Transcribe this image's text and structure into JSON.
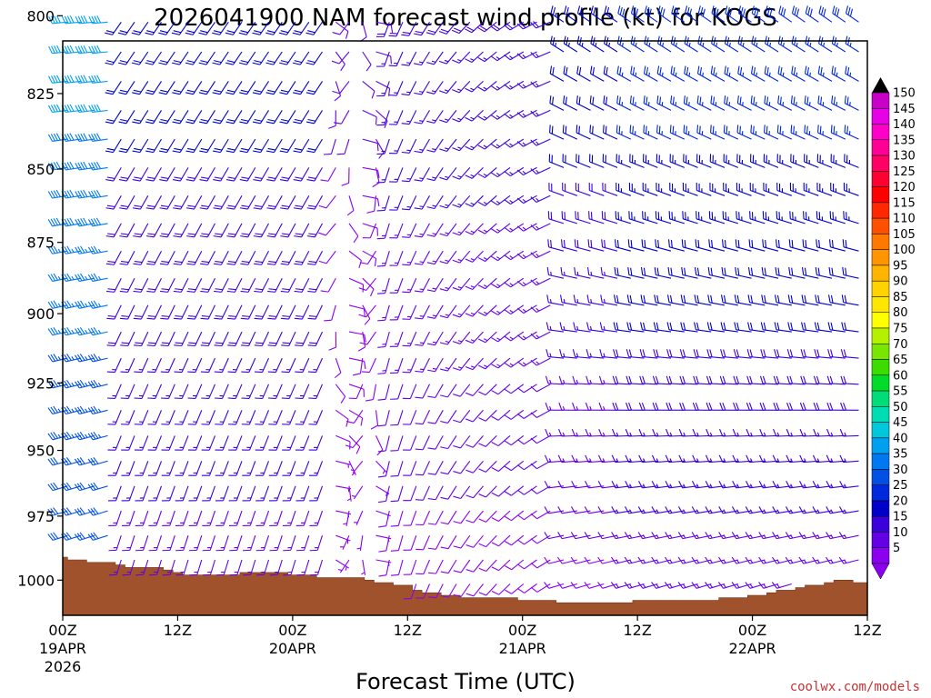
{
  "chart_data": {
    "type": "wind-barb-profile",
    "title": "2026041900 NAM forecast wind profile (kt) for KOGS",
    "xlabel": "Forecast Time (UTC)",
    "ylabel": "",
    "credit": "coolwx.com/models",
    "units": "kt",
    "x_hours_range": [
      0,
      84
    ],
    "y_pressure_range": [
      808,
      1014
    ],
    "x_ticks": [
      {
        "hour": 0,
        "label": "00Z",
        "date": "19APR",
        "year": "2026"
      },
      {
        "hour": 12,
        "label": "12Z",
        "date": "",
        "year": ""
      },
      {
        "hour": 24,
        "label": "00Z",
        "date": "20APR",
        "year": ""
      },
      {
        "hour": 36,
        "label": "12Z",
        "date": "",
        "year": ""
      },
      {
        "hour": 48,
        "label": "00Z",
        "date": "21APR",
        "year": ""
      },
      {
        "hour": 60,
        "label": "12Z",
        "date": "",
        "year": ""
      },
      {
        "hour": 72,
        "label": "00Z",
        "date": "22APR",
        "year": ""
      },
      {
        "hour": 84,
        "label": "12Z",
        "date": "",
        "year": ""
      }
    ],
    "y_ticks": [
      800,
      825,
      850,
      875,
      900,
      925,
      950,
      975,
      1000
    ],
    "colorbar": {
      "labels": [
        "150",
        "145",
        "140",
        "135",
        "130",
        "125",
        "120",
        "115",
        "110",
        "105",
        "100",
        "95",
        "90",
        "85",
        "80",
        "75",
        "70",
        "65",
        "60",
        "55",
        "50",
        "45",
        "40",
        "35",
        "30",
        "25",
        "20",
        "15",
        "10",
        "5"
      ],
      "colors": [
        "#c800c8",
        "#e600e6",
        "#ff00c8",
        "#ff0096",
        "#ff0064",
        "#ff0032",
        "#ff0000",
        "#ff2800",
        "#ff5000",
        "#ff7800",
        "#ff9600",
        "#ffb400",
        "#ffd200",
        "#ffe600",
        "#ffff00",
        "#b4f000",
        "#78e600",
        "#3cdc00",
        "#00dc28",
        "#00dc78",
        "#00dcb4",
        "#00c8dc",
        "#00a0f0",
        "#0078f0",
        "#0050e6",
        "#0028dc",
        "#0000c8",
        "#3c00dc",
        "#6400e6",
        "#8c00f0"
      ]
    },
    "surface_pressure_hpa": {
      "hours": [
        0,
        1,
        2,
        3,
        4,
        5,
        6,
        7,
        8,
        9,
        10,
        11,
        12,
        13,
        14,
        15,
        16,
        17,
        18,
        19,
        20,
        21,
        22,
        23,
        24,
        25,
        26,
        27,
        28,
        29,
        30,
        31,
        32,
        33,
        34,
        35,
        36,
        37,
        38,
        39,
        40,
        41,
        42,
        43,
        44,
        45,
        46,
        47,
        48,
        49,
        50,
        51,
        52,
        53,
        54,
        55,
        56,
        57,
        58,
        59,
        60,
        61,
        62,
        63,
        64,
        65,
        66,
        67,
        68,
        69,
        70,
        71,
        72,
        73,
        74,
        75,
        76,
        77,
        78,
        79,
        80,
        81,
        82,
        83,
        84
      ],
      "values": [
        991,
        992,
        992,
        993,
        993,
        993,
        994,
        995,
        995,
        995,
        995,
        996,
        997,
        998,
        998,
        998,
        998,
        998,
        998,
        997,
        997,
        997,
        997,
        997,
        998,
        998,
        998,
        999,
        999,
        999,
        999,
        999,
        1000,
        1001,
        1001,
        1002,
        1002,
        1004,
        1005,
        1005,
        1006,
        1006,
        1007,
        1007,
        1007,
        1007,
        1007,
        1007,
        1008,
        1008,
        1008,
        1008,
        1009,
        1009,
        1009,
        1009,
        1009,
        1009,
        1009,
        1009,
        1008,
        1008,
        1008,
        1008,
        1008,
        1008,
        1008,
        1008,
        1008,
        1007,
        1007,
        1007,
        1006,
        1006,
        1005,
        1004,
        1004,
        1003,
        1002,
        1002,
        1001,
        1000,
        1000,
        1001,
        1001
      ]
    },
    "wind_regimes": [
      {
        "hours": [
          0,
          5
        ],
        "speed_kt": [
          28,
          40
        ],
        "direction": "from west-southwest"
      },
      {
        "hours": [
          6,
          27
        ],
        "speed_kt": [
          12,
          22
        ],
        "direction": "from south-southwest"
      },
      {
        "hours": [
          28,
          33
        ],
        "speed_kt": [
          5,
          12
        ],
        "direction": "variable"
      },
      {
        "hours": [
          34,
          50
        ],
        "speed_kt": [
          8,
          20
        ],
        "direction": "from south to southwest"
      },
      {
        "hours": [
          51,
          84
        ],
        "speed_kt": [
          10,
          30
        ],
        "direction": "from west to northwest"
      }
    ]
  }
}
